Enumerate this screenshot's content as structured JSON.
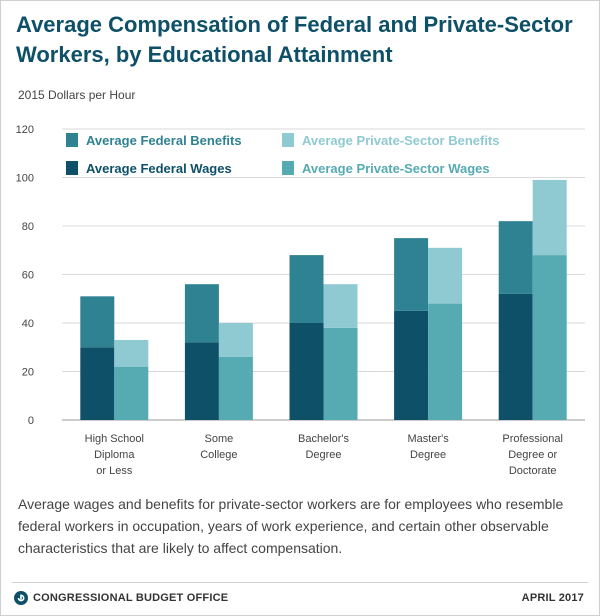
{
  "header": {
    "title": "Average Compensation of Federal and Private-Sector Workers, by Educational Attainment",
    "subtitle": "2015 Dollars per Hour"
  },
  "caption": "Average wages and benefits for private-sector workers are for employees who resemble federal workers in occupation, years of work experience, and certain other observable characteristics that are likely to affect compensation.",
  "footer": {
    "org": "CONGRESSIONAL BUDGET OFFICE",
    "date": "APRIL 2017"
  },
  "colors": {
    "federal_benefits": "#2f8292",
    "federal_wages": "#0d5068",
    "private_benefits": "#8fcad2",
    "private_wages": "#56aab2",
    "title": "#0d5068",
    "grid": "#d9d9d9"
  },
  "chart_data": {
    "type": "bar",
    "stacked": true,
    "title": "Average Compensation of Federal and Private-Sector Workers, by Educational Attainment",
    "ylabel": "2015 Dollars per Hour",
    "ylim": [
      0,
      120
    ],
    "yticks": [
      0,
      20,
      40,
      60,
      80,
      100,
      120
    ],
    "grid": true,
    "legend_position": "top",
    "categories": [
      [
        "High School",
        "Diploma",
        "or Less"
      ],
      [
        "Some",
        "College"
      ],
      [
        "Bachelor's",
        "Degree"
      ],
      [
        "Master's",
        "Degree"
      ],
      [
        "Professional",
        "Degree or",
        "Doctorate"
      ]
    ],
    "legend": [
      {
        "label": "Average Federal Benefits",
        "color": "#2f8292"
      },
      {
        "label": "Average Private-Sector Benefits",
        "color": "#8fcad2"
      },
      {
        "label": "Average Federal Wages",
        "color": "#0d5068"
      },
      {
        "label": "Average Private-Sector Wages",
        "color": "#56aab2"
      }
    ],
    "series": [
      {
        "name": "Average Federal Wages",
        "group": "federal",
        "color": "#0d5068",
        "values": [
          30,
          32,
          40,
          45,
          52
        ]
      },
      {
        "name": "Average Federal Benefits",
        "group": "federal",
        "color": "#2f8292",
        "values": [
          21,
          24,
          28,
          30,
          30
        ]
      },
      {
        "name": "Average Private-Sector Wages",
        "group": "private",
        "color": "#56aab2",
        "values": [
          22,
          26,
          38,
          48,
          68
        ]
      },
      {
        "name": "Average Private-Sector Benefits",
        "group": "private",
        "color": "#8fcad2",
        "values": [
          11,
          14,
          18,
          23,
          31
        ]
      }
    ]
  }
}
